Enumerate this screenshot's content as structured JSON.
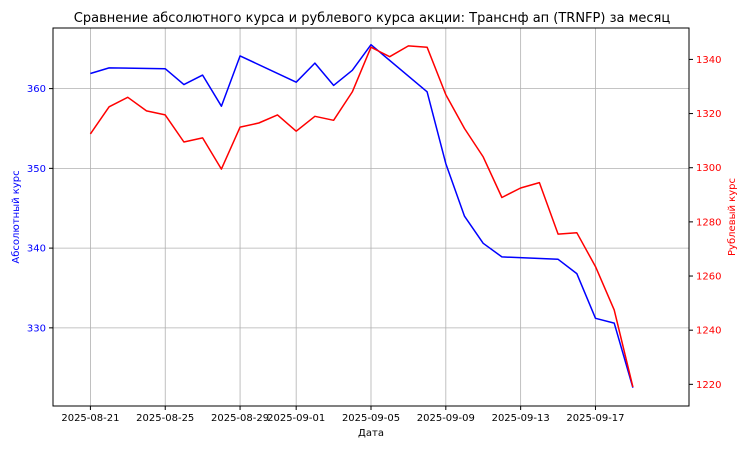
{
  "chart_data": {
    "type": "line",
    "title": "Сравнение абсолютного курса и рублевого курса акции: Транснф ап (TRNFP) за месяц",
    "xlabel": "Дата",
    "ylabel_left": "Абсолютный курс",
    "ylabel_right": "Рублевый курс",
    "x_ticks": [
      "2025-08-21",
      "2025-08-25",
      "2025-08-29",
      "2025-09-01",
      "2025-09-05",
      "2025-09-09",
      "2025-09-13",
      "2025-09-17"
    ],
    "y_left_ticks": [
      "330",
      "340",
      "350",
      "360"
    ],
    "y_right_ticks": [
      "1220",
      "1240",
      "1260",
      "1280",
      "1300",
      "1320",
      "1340"
    ],
    "xlim": [
      "2025-08-19",
      "2025-09-22"
    ],
    "ylim_left": [
      320.2,
      367.6
    ],
    "ylim_right": [
      1212,
      1351.6
    ],
    "grid": true,
    "colors": {
      "left": "#0000ff",
      "right": "#ff0000"
    },
    "series": [
      {
        "axis": "left",
        "color": "#0000ff",
        "x": [
          "2025-08-21",
          "2025-08-22",
          "2025-08-25",
          "2025-08-26",
          "2025-08-27",
          "2025-08-28",
          "2025-08-29",
          "2025-09-01",
          "2025-09-02",
          "2025-09-03",
          "2025-09-04",
          "2025-09-05",
          "2025-09-08",
          "2025-09-09",
          "2025-09-10",
          "2025-09-11",
          "2025-09-12",
          "2025-09-15",
          "2025-09-16",
          "2025-09-17",
          "2025-09-18",
          "2025-09-19"
        ],
        "values": [
          361.9,
          362.6,
          362.5,
          360.5,
          361.7,
          357.8,
          364.1,
          360.8,
          363.2,
          360.4,
          362.3,
          365.5,
          359.6,
          350.6,
          344.0,
          340.6,
          338.9,
          338.6,
          336.8,
          331.2,
          330.6,
          322.5
        ]
      },
      {
        "axis": "right",
        "color": "#ff0000",
        "x": [
          "2025-08-21",
          "2025-08-22",
          "2025-08-23",
          "2025-08-24",
          "2025-08-25",
          "2025-08-26",
          "2025-08-27",
          "2025-08-28",
          "2025-08-29",
          "2025-08-30",
          "2025-08-31",
          "2025-09-01",
          "2025-09-02",
          "2025-09-03",
          "2025-09-04",
          "2025-09-05",
          "2025-09-06",
          "2025-09-07",
          "2025-09-08",
          "2025-09-09",
          "2025-09-10",
          "2025-09-11",
          "2025-09-12",
          "2025-09-13",
          "2025-09-14",
          "2025-09-15",
          "2025-09-16",
          "2025-09-17",
          "2025-09-18",
          "2025-09-19"
        ],
        "values": [
          1312.5,
          1322.5,
          1326.0,
          1321.0,
          1319.5,
          1309.5,
          1311.0,
          1299.5,
          1315.0,
          1316.5,
          1319.5,
          1313.5,
          1319.0,
          1317.5,
          1328.0,
          1344.5,
          1341.0,
          1345.0,
          1344.5,
          1327.0,
          1314.5,
          1304.0,
          1289.0,
          1292.5,
          1294.5,
          1275.5,
          1276.0,
          1263.5,
          1247.5,
          1219.0
        ]
      }
    ]
  }
}
